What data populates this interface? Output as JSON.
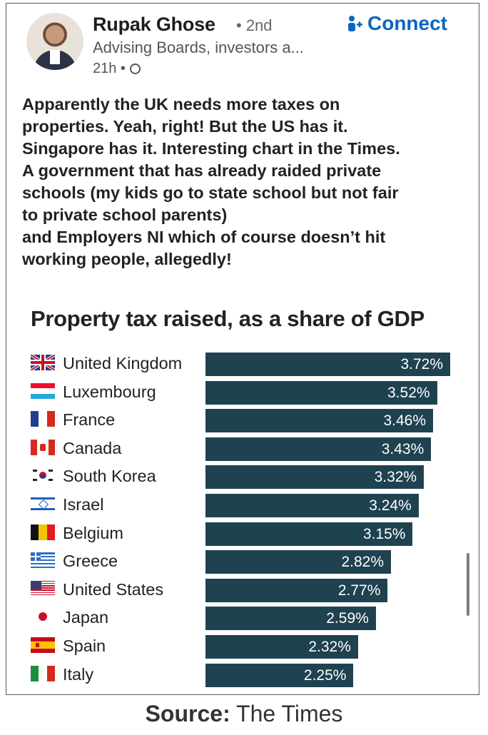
{
  "post": {
    "author_name": "Rupak Ghose",
    "degree": "• 2nd",
    "connect_label": "Connect",
    "headline": "Advising Boards, investors a...",
    "time": "21h •",
    "body": "Apparently the UK needs more taxes on\nproperties. Yeah, right! But the US has it.\nSingapore has it. Interesting chart in the Times.\nA government that has already raided private\nschools (my kids go to state school but not fair\nto private school parents)\nand Employers NI which of course doesn’t hit\nworking people, allegedly!"
  },
  "chart_data": {
    "type": "bar",
    "orientation": "horizontal",
    "title": "Property tax raised, as a share of GDP",
    "categories": [
      "United Kingdom",
      "Luxembourg",
      "France",
      "Canada",
      "South Korea",
      "Israel",
      "Belgium",
      "Greece",
      "United States",
      "Japan",
      "Spain",
      "Italy"
    ],
    "values": [
      3.72,
      3.52,
      3.46,
      3.43,
      3.32,
      3.24,
      3.15,
      2.82,
      2.77,
      2.59,
      2.32,
      2.25
    ],
    "labels": [
      "3.72%",
      "3.52%",
      "3.46%",
      "3.43%",
      "3.32%",
      "3.24%",
      "3.15%",
      "2.82%",
      "2.77%",
      "2.59%",
      "2.32%",
      "2.25%"
    ],
    "bar_color": "#1f4250",
    "xlabel": "",
    "ylabel": ""
  },
  "icons": {
    "connect": "add-person-icon",
    "visibility": "globe-icon"
  },
  "source": {
    "label": "Source:",
    "value": "The Times"
  }
}
